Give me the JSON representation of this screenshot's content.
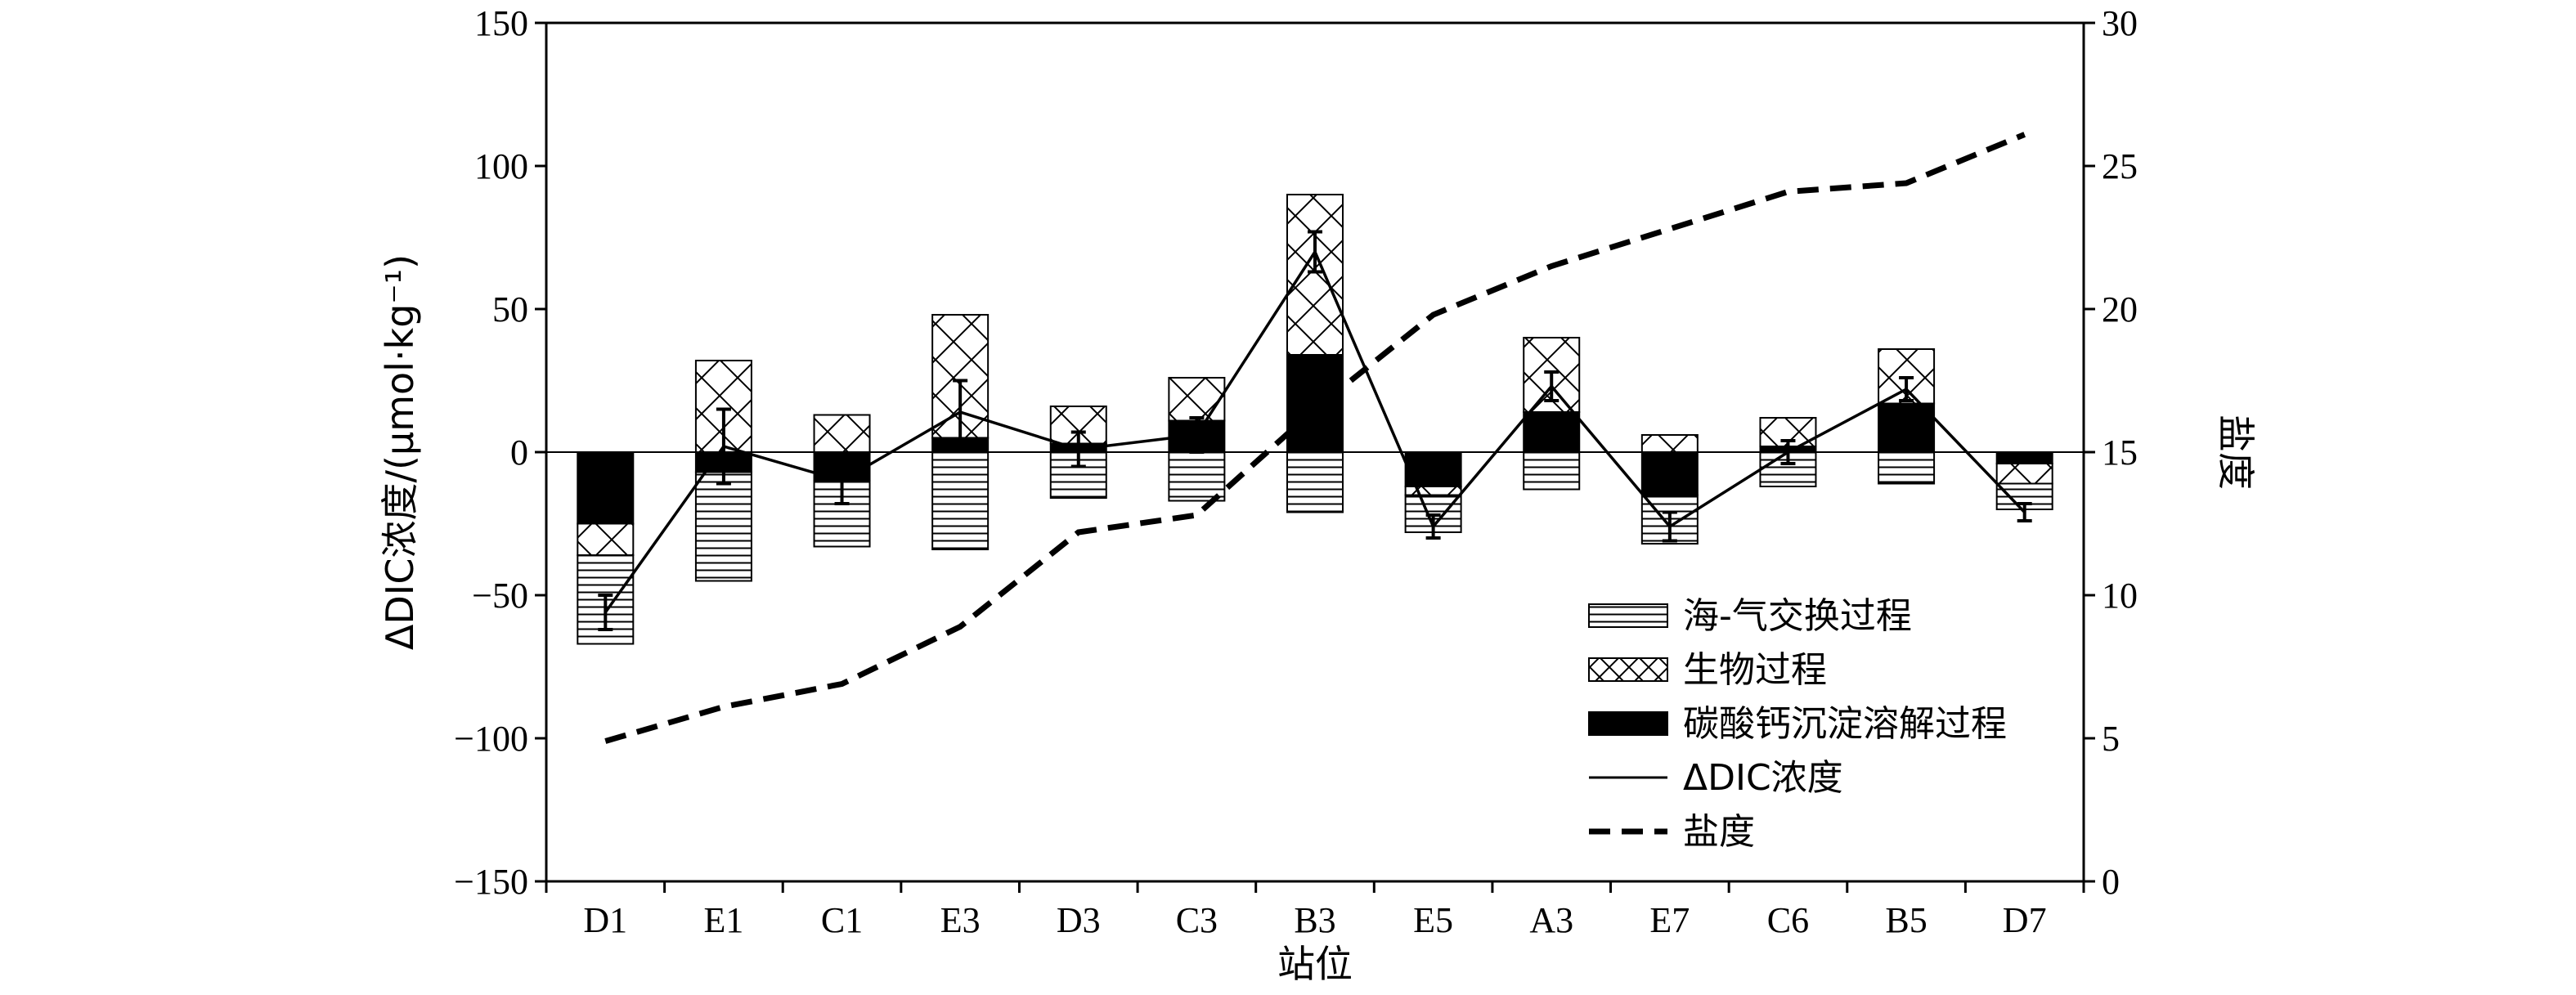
{
  "chart_data": {
    "type": "bar",
    "categories": [
      "D1",
      "E1",
      "C1",
      "E3",
      "D3",
      "C3",
      "B3",
      "E5",
      "A3",
      "E7",
      "C6",
      "B5",
      "D7"
    ],
    "xlabel": "站位",
    "ylabel_left": "ΔDIC浓度/(μmol·kg⁻¹)",
    "ylabel_right": "盐度",
    "ylim_left": [
      -150,
      150
    ],
    "yticks_left": [
      -150,
      -100,
      -50,
      0,
      50,
      100,
      150
    ],
    "ylim_right": [
      0,
      30
    ],
    "yticks_right": [
      0,
      5,
      10,
      15,
      20,
      25,
      30
    ],
    "legend_position": "lower-right",
    "series": [
      {
        "name": "海-气交换过程",
        "kind": "stacked-bar",
        "pattern": "horizontal-lines",
        "values": [
          -31,
          -38,
          -23,
          -34,
          -16,
          -17,
          -21,
          -13,
          -13,
          -17,
          -12,
          -11,
          -9
        ]
      },
      {
        "name": "生物过程",
        "kind": "stacked-bar",
        "pattern": "cross-hatch",
        "values": [
          -11,
          32,
          13,
          43,
          13,
          15,
          56,
          -3,
          26,
          6,
          10,
          19,
          -7
        ]
      },
      {
        "name": "碳酸钙沉淀溶解过程",
        "kind": "stacked-bar",
        "pattern": "solid-black",
        "values": [
          -25,
          -7,
          -10,
          5,
          3,
          11,
          34,
          -12,
          14,
          -15,
          2,
          17,
          -4
        ]
      },
      {
        "name": "ΔDIC浓度",
        "kind": "line",
        "style": "solid",
        "values": [
          -56,
          2,
          -10,
          14,
          1,
          6,
          70,
          -26,
          23,
          -26,
          0,
          22,
          -21
        ],
        "error": [
          6,
          13,
          8,
          11,
          6,
          6,
          7,
          4,
          5,
          5,
          4,
          4,
          3
        ]
      },
      {
        "name": "盐度",
        "kind": "line",
        "style": "dashed",
        "axis": "right",
        "values": [
          4.9,
          6.1,
          6.9,
          8.9,
          12.2,
          12.8,
          16.5,
          19.8,
          21.5,
          22.8,
          24.1,
          24.4,
          26.1
        ]
      }
    ]
  }
}
